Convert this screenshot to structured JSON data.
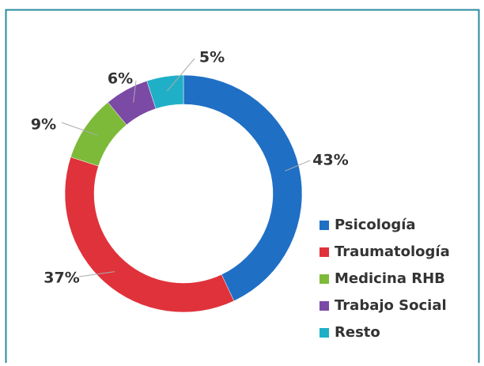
{
  "chart_data": {
    "type": "donut",
    "categories": [
      "Psicología",
      "Traumatología",
      "Medicina RHB",
      "Trabajo Social",
      "Resto"
    ],
    "values": [
      43,
      37,
      9,
      6,
      5
    ],
    "value_labels": [
      "43%",
      "37%",
      "9%",
      "6%",
      "5%"
    ],
    "colors": [
      "#1f6fc5",
      "#e0323a",
      "#7dba3a",
      "#7b4aa5",
      "#1fb0c8"
    ],
    "legend": "right"
  }
}
